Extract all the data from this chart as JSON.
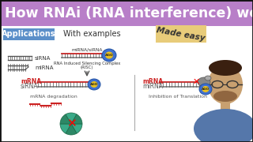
{
  "title": "How RNAi (RNA interference) works?",
  "title_bg": "#b87fc8",
  "title_color": "#ffffff",
  "subtitle_left": "Applications",
  "subtitle_left_bg": "#5b8fc9",
  "subtitle_left_color": "#ffffff",
  "subtitle_mid": "With examples",
  "subtitle_mid_color": "#333333",
  "made_easy_text": "Made easy",
  "made_easy_bg": "#e8cc7a",
  "made_easy_color": "#333333",
  "bg_color": "#f8f8f8",
  "diagram_bg": "#ffffff",
  "mrna_color": "#cc2222",
  "sirna_color": "#cc2222",
  "risc_color": "#4070d0",
  "label_color": "#333333",
  "border_color": "#111111",
  "line1_label": "siRNA",
  "line2_label": "miRNA",
  "bottom_label1": "mRNA degradation",
  "bottom_label2": "Inhibition of Translation",
  "risc_label1": "RNA Induced Silencing Complex",
  "risc_label2": "(RISC)"
}
